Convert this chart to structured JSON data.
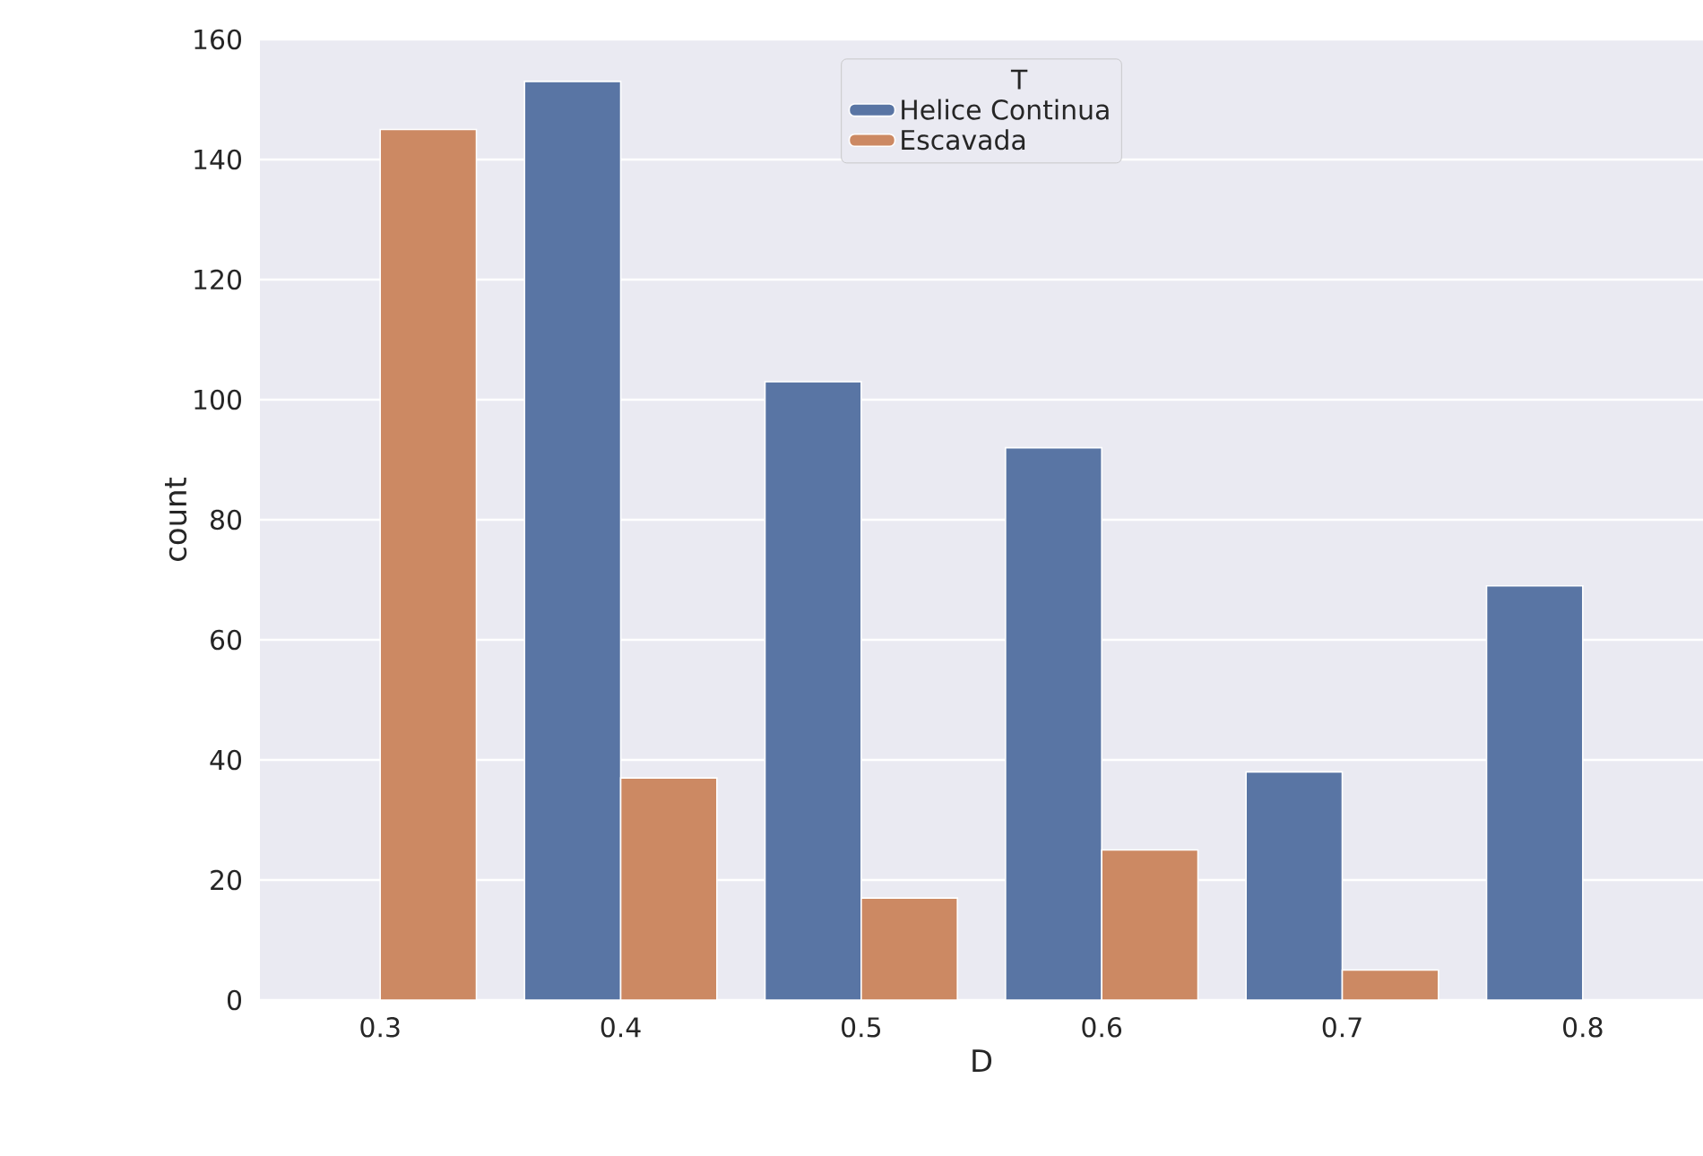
{
  "chart_data": {
    "type": "bar",
    "xlabel": "D",
    "ylabel": "count",
    "legend_title": "T",
    "categories": [
      "0.3",
      "0.4",
      "0.5",
      "0.6",
      "0.7",
      "0.8"
    ],
    "series": [
      {
        "name": "Helice Continua",
        "color": "#5975a4",
        "values": [
          null,
          153,
          103,
          92,
          38,
          69
        ]
      },
      {
        "name": "Escavada",
        "color": "#cc8963",
        "values": [
          145,
          37,
          17,
          25,
          5,
          null
        ]
      }
    ],
    "ylim": [
      0,
      160
    ],
    "yticks": [
      0,
      20,
      40,
      60,
      80,
      100,
      120,
      140,
      160
    ],
    "grid": "y",
    "legend": "top"
  }
}
